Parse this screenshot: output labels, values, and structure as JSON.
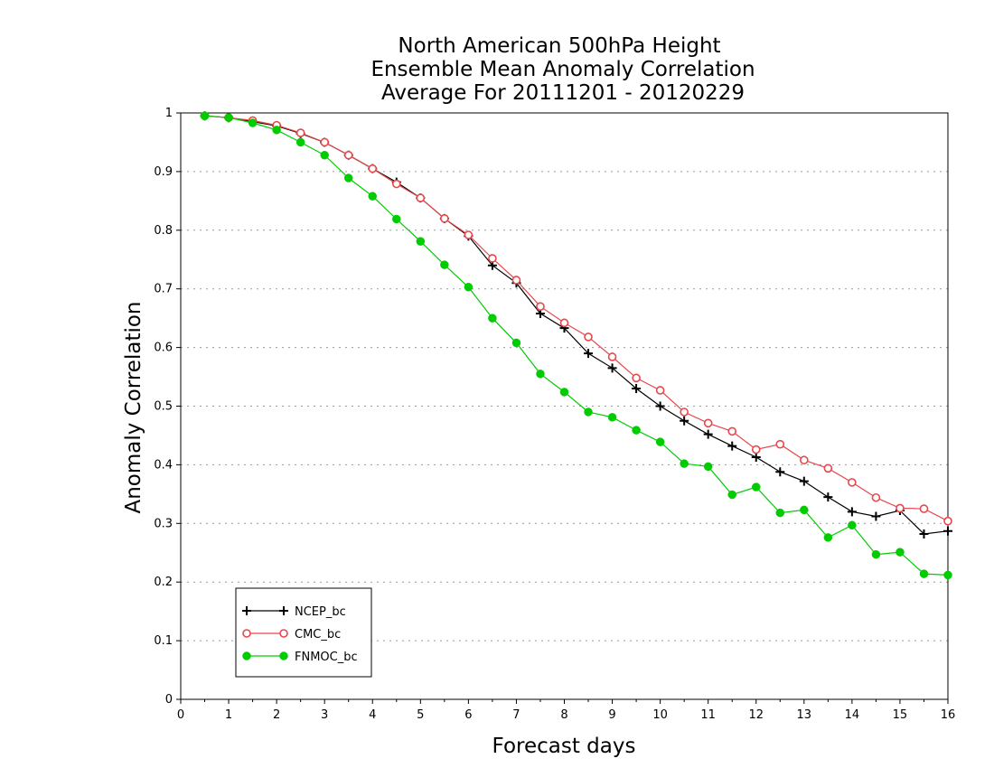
{
  "chart_data": {
    "type": "line",
    "title_lines": [
      "North American 500hPa Height",
      "Ensemble Mean Anomaly Correlation",
      "Average For 20111201 - 20120229"
    ],
    "xlabel": "Forecast days",
    "ylabel": "Anomaly Correlation",
    "xlim": [
      0,
      16
    ],
    "ylim": [
      0,
      1
    ],
    "x_ticks": [
      0,
      1,
      2,
      3,
      4,
      5,
      6,
      7,
      8,
      9,
      10,
      11,
      12,
      13,
      14,
      15,
      16
    ],
    "x_tick_labels": [
      "0",
      "1",
      "2",
      "3",
      "4",
      "5",
      "6",
      "7",
      "8",
      "9",
      "10",
      "11",
      "12",
      "13",
      "14",
      "15",
      "16"
    ],
    "y_ticks": [
      0,
      0.1,
      0.2,
      0.3,
      0.4,
      0.5,
      0.6,
      0.7,
      0.8,
      0.9,
      1
    ],
    "y_tick_labels": [
      "0",
      "0.1",
      "0.2",
      "0.3",
      "0.4",
      "0.5",
      "0.6",
      "0.7",
      "0.8",
      "0.9",
      "1"
    ],
    "grid": "horizontal-dotted",
    "legend_position": "bottom-left",
    "x": [
      0.5,
      1,
      1.5,
      2,
      2.5,
      3,
      3.5,
      4,
      4.5,
      5,
      5.5,
      6,
      6.5,
      7,
      7.5,
      8,
      8.5,
      9,
      9.5,
      10,
      10.5,
      11,
      11.5,
      12,
      12.5,
      13,
      13.5,
      14,
      14.5,
      15,
      15.5,
      16
    ],
    "series": [
      {
        "name": "NCEP_bc",
        "color": "#000000",
        "marker": "plus",
        "values": [
          0.995,
          0.992,
          0.985,
          0.978,
          0.965,
          0.95,
          0.928,
          0.905,
          0.882,
          0.855,
          0.82,
          0.79,
          0.74,
          0.71,
          0.658,
          0.633,
          0.59,
          0.565,
          0.53,
          0.5,
          0.475,
          0.452,
          0.432,
          0.413,
          0.388,
          0.372,
          0.345,
          0.32,
          0.312,
          0.322,
          0.282,
          0.287
        ]
      },
      {
        "name": "CMC_bc",
        "color": "#e8474b",
        "marker": "open-circle",
        "values": [
          0.995,
          0.992,
          0.987,
          0.979,
          0.966,
          0.95,
          0.928,
          0.905,
          0.879,
          0.855,
          0.82,
          0.792,
          0.752,
          0.715,
          0.67,
          0.642,
          0.618,
          0.584,
          0.548,
          0.527,
          0.49,
          0.471,
          0.457,
          0.426,
          0.435,
          0.408,
          0.394,
          0.37,
          0.344,
          0.326,
          0.325,
          0.304
        ]
      },
      {
        "name": "FNMOC_bc",
        "color": "#00cc00",
        "marker": "filled-circle",
        "values": [
          0.995,
          0.992,
          0.983,
          0.971,
          0.95,
          0.928,
          0.889,
          0.858,
          0.819,
          0.781,
          0.741,
          0.703,
          0.65,
          0.608,
          0.555,
          0.524,
          0.49,
          0.481,
          0.459,
          0.439,
          0.402,
          0.397,
          0.349,
          0.362,
          0.318,
          0.323,
          0.276,
          0.297,
          0.247,
          0.251,
          0.214,
          0.212
        ]
      }
    ]
  }
}
